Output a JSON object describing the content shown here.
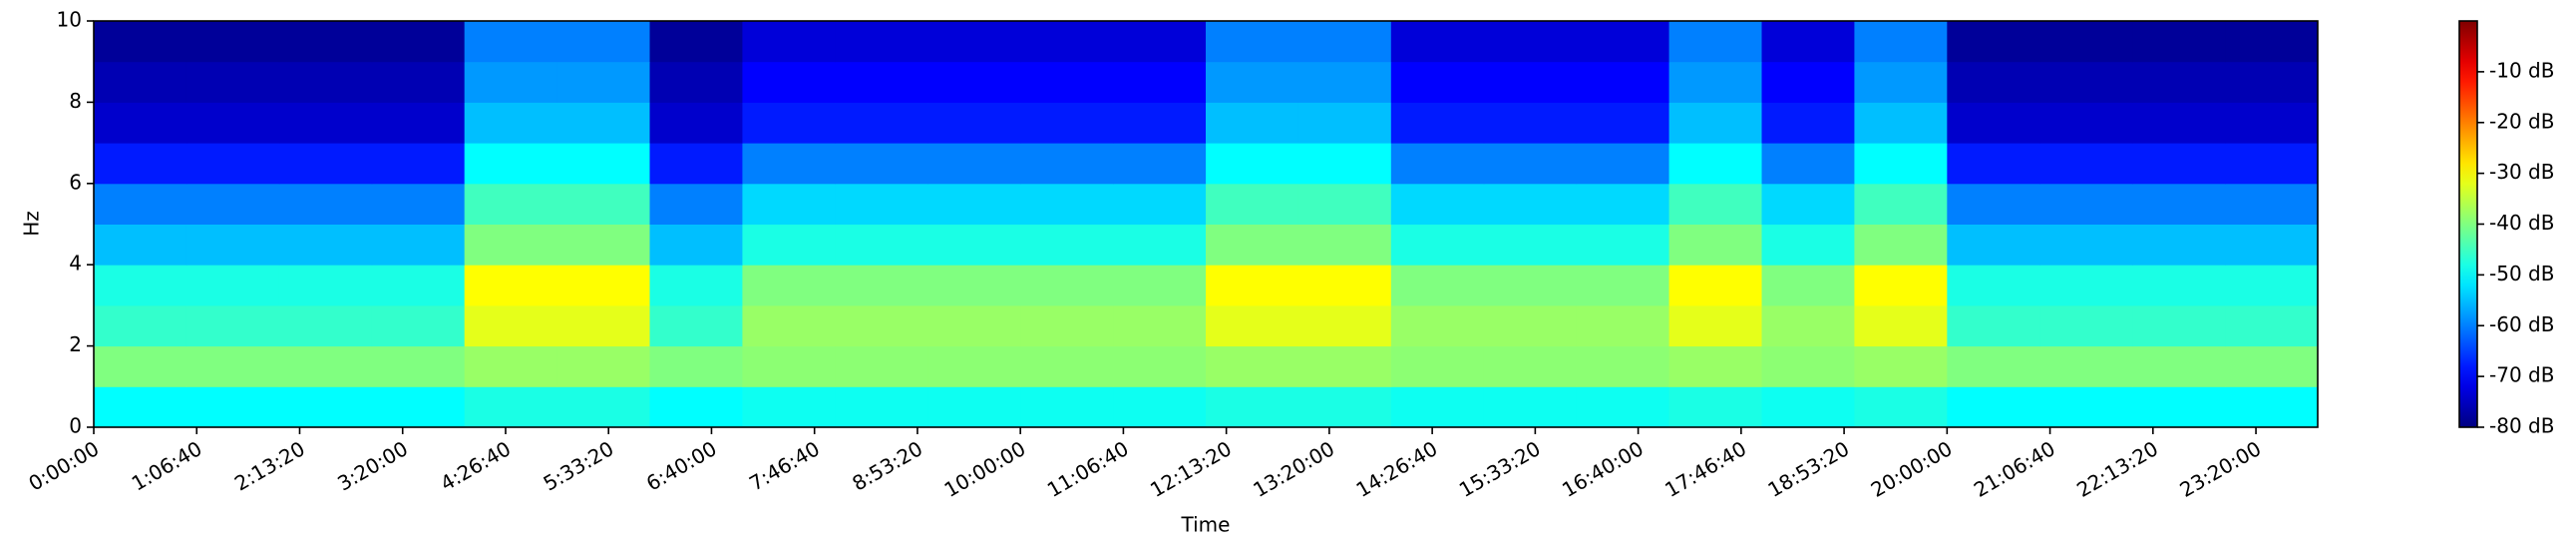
{
  "chart_data": {
    "type": "spectrogram",
    "xlabel": "Time",
    "ylabel": "Hz",
    "colormap": "jet",
    "xbins": [
      0,
      3600,
      7200,
      10800,
      14400,
      18000,
      21600,
      25200,
      28800,
      32400,
      36000,
      39600,
      43200,
      46800,
      50400,
      54000,
      57600,
      61200,
      64800,
      68400,
      72000,
      75600,
      79200,
      82800,
      86400
    ],
    "ybins": [
      0,
      1,
      2,
      3,
      4,
      5,
      6,
      7,
      8,
      9,
      10
    ],
    "z": [
      [
        -50,
        -50,
        -50,
        -50,
        -48,
        -48,
        -50,
        -49,
        -49,
        -49,
        -49,
        -49,
        -48,
        -48,
        -49,
        -49,
        -49,
        -48,
        -49,
        -48,
        -50,
        -50,
        -50,
        -50
      ],
      [
        -40,
        -40,
        -40,
        -40,
        -38,
        -38,
        -40,
        -39,
        -39,
        -39,
        -39,
        -39,
        -38,
        -38,
        -39,
        -39,
        -39,
        -38,
        -39,
        -38,
        -40,
        -40,
        -40,
        -40
      ],
      [
        -46,
        -46,
        -46,
        -46,
        -32,
        -32,
        -46,
        -38,
        -38,
        -38,
        -38,
        -38,
        -32,
        -32,
        -38,
        -38,
        -38,
        -32,
        -38,
        -32,
        -46,
        -46,
        -46,
        -46
      ],
      [
        -48,
        -48,
        -48,
        -48,
        -30,
        -30,
        -48,
        -40,
        -40,
        -40,
        -40,
        -40,
        -30,
        -30,
        -40,
        -40,
        -40,
        -30,
        -40,
        -30,
        -48,
        -48,
        -48,
        -48
      ],
      [
        -55,
        -55,
        -55,
        -55,
        -40,
        -40,
        -55,
        -48,
        -48,
        -48,
        -48,
        -48,
        -40,
        -40,
        -48,
        -48,
        -48,
        -40,
        -48,
        -40,
        -55,
        -55,
        -55,
        -55
      ],
      [
        -60,
        -60,
        -60,
        -60,
        -45,
        -45,
        -60,
        -53,
        -53,
        -53,
        -53,
        -53,
        -45,
        -45,
        -53,
        -53,
        -53,
        -45,
        -53,
        -45,
        -60,
        -60,
        -60,
        -60
      ],
      [
        -68,
        -68,
        -68,
        -68,
        -50,
        -50,
        -68,
        -60,
        -60,
        -60,
        -60,
        -60,
        -50,
        -50,
        -60,
        -60,
        -60,
        -50,
        -60,
        -50,
        -68,
        -68,
        -68,
        -68
      ],
      [
        -74,
        -74,
        -74,
        -74,
        -55,
        -55,
        -74,
        -68,
        -68,
        -68,
        -68,
        -68,
        -55,
        -55,
        -68,
        -68,
        -68,
        -55,
        -68,
        -55,
        -74,
        -74,
        -74,
        -74
      ],
      [
        -76,
        -76,
        -76,
        -76,
        -58,
        -58,
        -76,
        -70,
        -70,
        -70,
        -70,
        -70,
        -58,
        -58,
        -70,
        -70,
        -70,
        -58,
        -70,
        -58,
        -76,
        -76,
        -76,
        -76
      ],
      [
        -78,
        -78,
        -78,
        -78,
        -60,
        -60,
        -78,
        -73,
        -73,
        -73,
        -73,
        -73,
        -60,
        -60,
        -73,
        -73,
        -73,
        -60,
        -73,
        -60,
        -78,
        -78,
        -78,
        -78
      ]
    ],
    "xlim": [
      0,
      86400
    ],
    "ylim": [
      0,
      10
    ],
    "clim": [
      -80,
      0
    ],
    "xticks": [
      {
        "value": 0,
        "label": "0:00:00"
      },
      {
        "value": 4000,
        "label": "1:06:40"
      },
      {
        "value": 8000,
        "label": "2:13:20"
      },
      {
        "value": 12000,
        "label": "3:20:00"
      },
      {
        "value": 16000,
        "label": "4:26:40"
      },
      {
        "value": 20000,
        "label": "5:33:20"
      },
      {
        "value": 24000,
        "label": "6:40:00"
      },
      {
        "value": 28000,
        "label": "7:46:40"
      },
      {
        "value": 32000,
        "label": "8:53:20"
      },
      {
        "value": 36000,
        "label": "10:00:00"
      },
      {
        "value": 40000,
        "label": "11:06:40"
      },
      {
        "value": 44000,
        "label": "12:13:20"
      },
      {
        "value": 48000,
        "label": "13:20:00"
      },
      {
        "value": 52000,
        "label": "14:26:40"
      },
      {
        "value": 56000,
        "label": "15:33:20"
      },
      {
        "value": 60000,
        "label": "16:40:00"
      },
      {
        "value": 64000,
        "label": "17:46:40"
      },
      {
        "value": 68000,
        "label": "18:53:20"
      },
      {
        "value": 72000,
        "label": "20:00:00"
      },
      {
        "value": 76000,
        "label": "21:06:40"
      },
      {
        "value": 80000,
        "label": "22:13:20"
      },
      {
        "value": 84000,
        "label": "23:20:00"
      }
    ],
    "yticks": [
      0,
      2,
      4,
      6,
      8,
      10
    ],
    "cticks": [
      {
        "value": -10,
        "label": "-10 dB"
      },
      {
        "value": -20,
        "label": "-20 dB"
      },
      {
        "value": -30,
        "label": "-30 dB"
      },
      {
        "value": -40,
        "label": "-40 dB"
      },
      {
        "value": -50,
        "label": "-50 dB"
      },
      {
        "value": -60,
        "label": "-60 dB"
      },
      {
        "value": -70,
        "label": "-70 dB"
      },
      {
        "value": -80,
        "label": "-80 dB"
      }
    ]
  }
}
